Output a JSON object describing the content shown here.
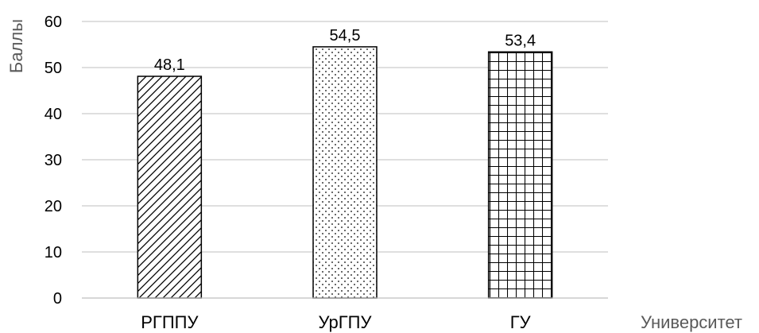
{
  "chart_data": {
    "type": "bar",
    "categories": [
      "РГППУ",
      "УрГПУ",
      "ГУ"
    ],
    "values": [
      48.1,
      54.5,
      53.4
    ],
    "value_labels": [
      "48,1",
      "54,5",
      "53,4"
    ],
    "bar_patterns": [
      "diagonal-hatch",
      "dots",
      "grid"
    ],
    "ylabel": "Баллы",
    "xlabel": "Университет",
    "ylim": [
      0,
      60
    ],
    "yticks": [
      0,
      10,
      20,
      30,
      40,
      50,
      60
    ],
    "grid": true,
    "legend": "none",
    "colors": {
      "bar_fill": "#ffffff",
      "bar_stroke": "#000000",
      "gridline": "#bfbfbf",
      "axis_label": "#595959"
    }
  }
}
